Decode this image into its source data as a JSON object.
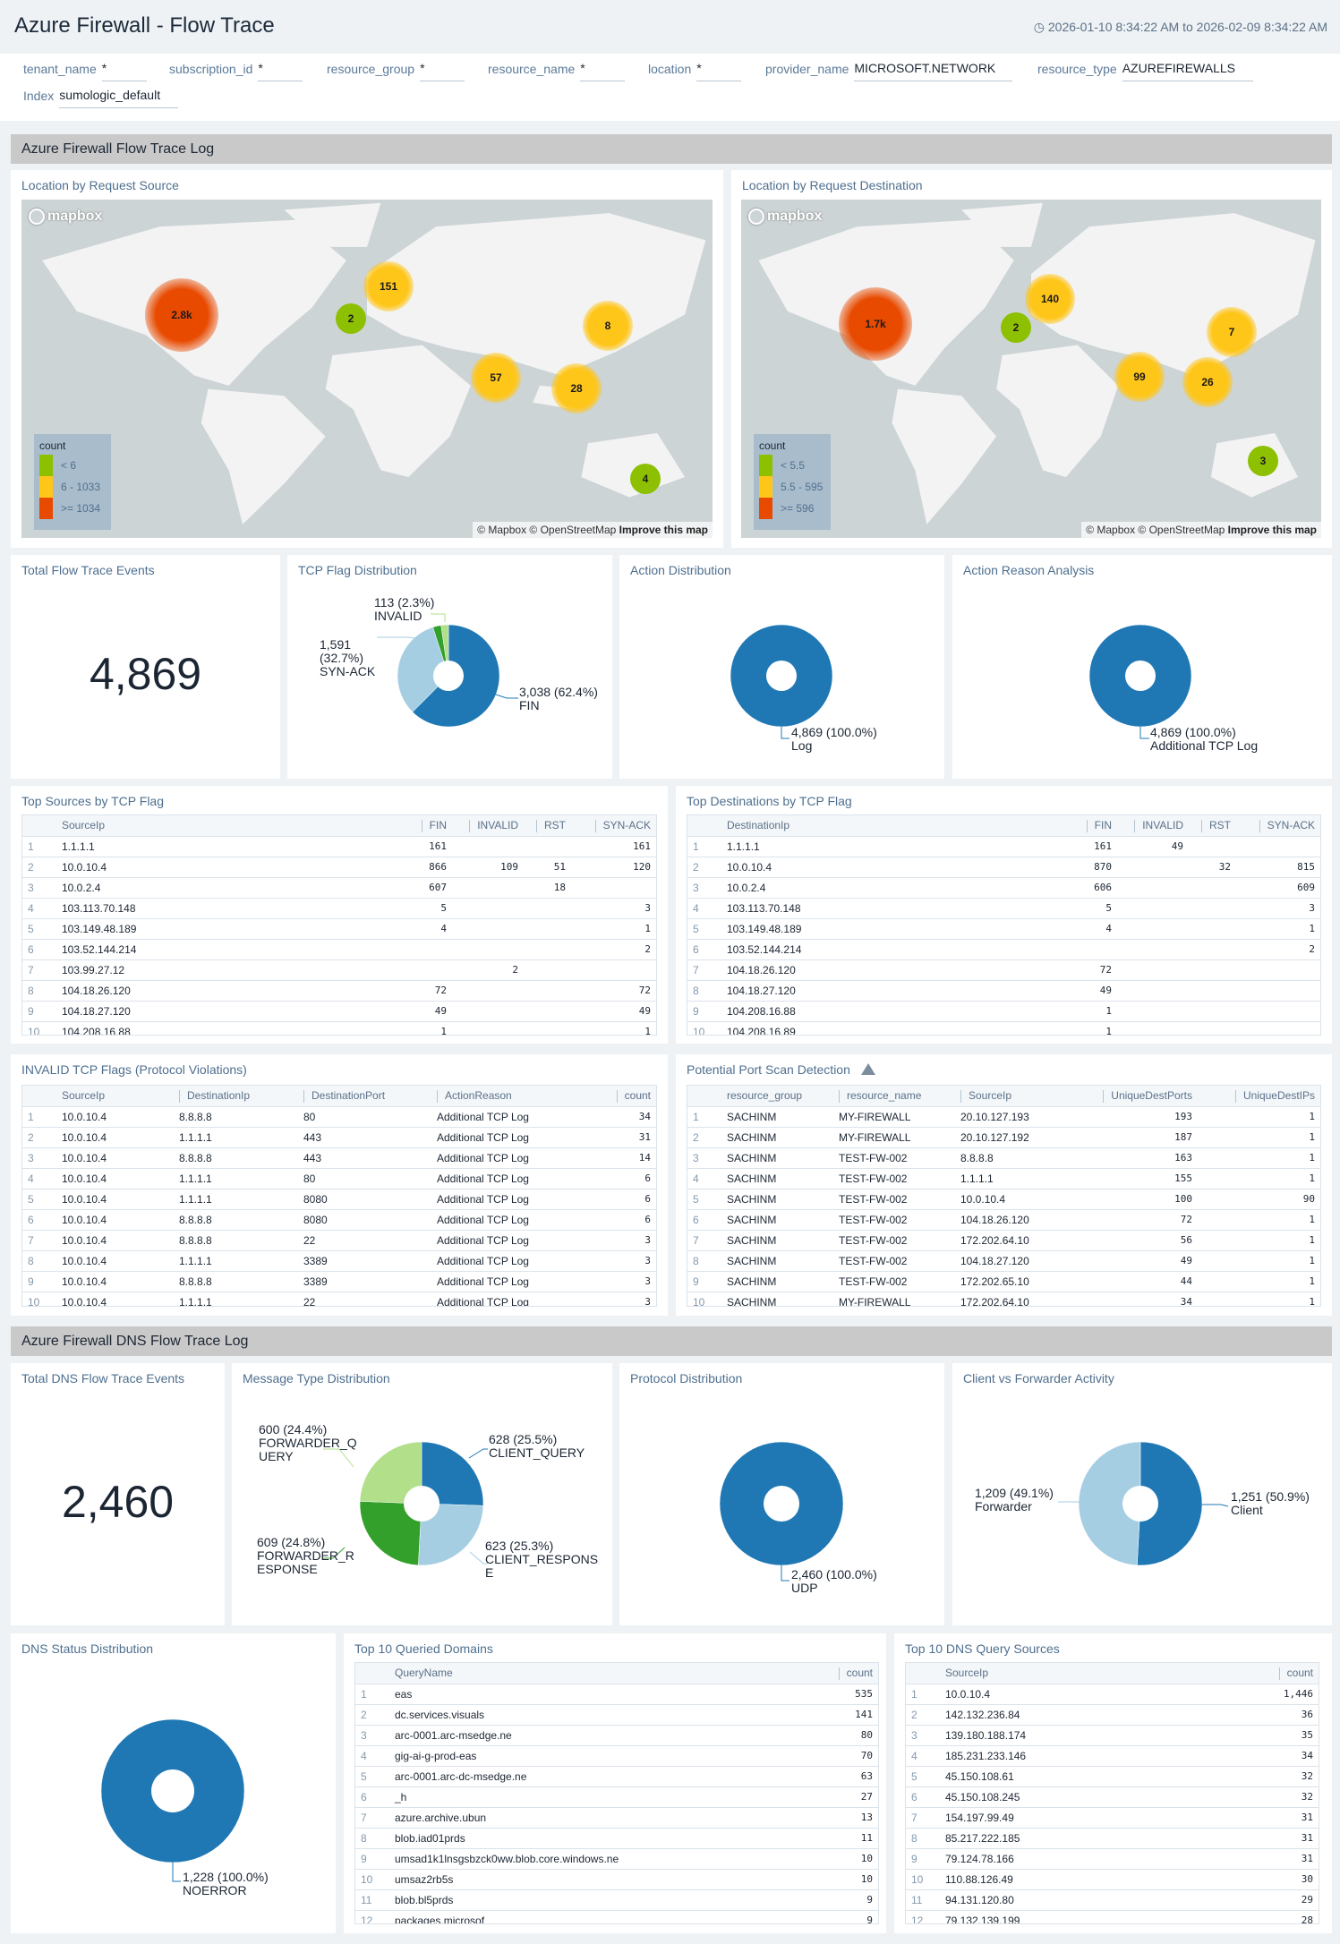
{
  "header": {
    "title": "Azure Firewall - Flow Trace",
    "time_range": "2026-01-10 8:34:22 AM to 2026-02-09 8:34:22 AM"
  },
  "filters": [
    {
      "key": "tenant_name",
      "value": "*"
    },
    {
      "key": "subscription_id",
      "value": "*"
    },
    {
      "key": "resource_group",
      "value": "*"
    },
    {
      "key": "resource_name",
      "value": "*"
    },
    {
      "key": "location",
      "value": "*"
    },
    {
      "key": "provider_name",
      "value": "MICROSOFT.NETWORK"
    },
    {
      "key": "resource_type",
      "value": "AZUREFIREWALLS"
    },
    {
      "key": "Index",
      "value": "sumologic_default"
    }
  ],
  "sections": {
    "flow": "Azure Firewall Flow Trace Log",
    "dns": "Azure Firewall DNS Flow Trace Log"
  },
  "maps": {
    "attribution": "© Mapbox © OpenStreetMap",
    "improve": "Improve this map",
    "logo": "mapbox",
    "source": {
      "title": "Location by Request Source",
      "legend_title": "count",
      "legend": [
        "< 6",
        "6 - 1033",
        ">= 1034"
      ],
      "clusters": [
        "2.8k",
        "151",
        "2",
        "8",
        "57",
        "28",
        "4"
      ]
    },
    "destination": {
      "title": "Location by Request Destination",
      "legend_title": "count",
      "legend": [
        "< 5.5",
        "5.5 - 595",
        ">= 596"
      ],
      "clusters": [
        "1.7k",
        "140",
        "2",
        "7",
        "99",
        "26",
        "3"
      ]
    },
    "colors": {
      "low": "#8dc000",
      "mid": "#ffc61a",
      "high": "#e84a00"
    }
  },
  "total_flow": {
    "title": "Total Flow Trace Events",
    "value": "4,869"
  },
  "chart_data": [
    {
      "type": "pie",
      "title": "TCP Flag Distribution",
      "slices": [
        {
          "label": "FIN",
          "value": 3038,
          "text": "3,038 (62.4%)\nFIN",
          "color": "#1f78b4"
        },
        {
          "label": "SYN-ACK",
          "value": 1591,
          "text": "1,591\n(32.7%)\nSYN-ACK",
          "color": "#a6cee3"
        },
        {
          "label": "",
          "value": 127,
          "text": "",
          "color": "#33a02c"
        },
        {
          "label": "INVALID",
          "value": 113,
          "text": "113 (2.3%)\nINVALID",
          "color": "#b2df8a"
        }
      ]
    },
    {
      "type": "pie",
      "title": "Action Distribution",
      "slices": [
        {
          "label": "Log",
          "value": 4869,
          "text": "4,869 (100.0%)\nLog",
          "color": "#1f78b4"
        }
      ]
    },
    {
      "type": "pie",
      "title": "Action Reason Analysis",
      "slices": [
        {
          "label": "Additional TCP Log",
          "value": 4869,
          "text": "4,869 (100.0%)\nAdditional TCP Log",
          "color": "#1f78b4"
        }
      ]
    },
    {
      "type": "pie",
      "title": "Message Type Distribution",
      "slices": [
        {
          "label": "CLIENT_QUERY",
          "value": 628,
          "text": "628 (25.5%)\nCLIENT_QUERY",
          "color": "#1f78b4"
        },
        {
          "label": "CLIENT_RESPONSE",
          "value": 623,
          "text": "623 (25.3%)\nCLIENT_RESPONS\nE",
          "color": "#a6cee3"
        },
        {
          "label": "FORWARDER_RESPONSE",
          "value": 609,
          "text": "609 (24.8%)\nFORWARDER_R\nESPONSE",
          "color": "#33a02c"
        },
        {
          "label": "FORWARDER_QUERY",
          "value": 600,
          "text": "600 (24.4%)\nFORWARDER_Q\nUERY",
          "color": "#b2df8a"
        }
      ]
    },
    {
      "type": "pie",
      "title": "Protocol Distribution",
      "slices": [
        {
          "label": "UDP",
          "value": 2460,
          "text": "2,460 (100.0%)\nUDP",
          "color": "#1f78b4"
        }
      ]
    },
    {
      "type": "pie",
      "title": "Client vs Forwarder Activity",
      "slices": [
        {
          "label": "Client",
          "value": 1251,
          "text": "1,251 (50.9%)\nClient",
          "color": "#1f78b4"
        },
        {
          "label": "Forwarder",
          "value": 1209,
          "text": "1,209 (49.1%)\nForwarder",
          "color": "#a6cee3"
        }
      ]
    },
    {
      "type": "pie",
      "title": "DNS Status Distribution",
      "slices": [
        {
          "label": "NOERROR",
          "value": 1228,
          "text": "1,228 (100.0%)\nNOERROR",
          "color": "#1f78b4"
        }
      ]
    }
  ],
  "total_dns": {
    "title": "Total DNS Flow Trace Events",
    "value": "2,460"
  },
  "tables": {
    "top_sources": {
      "title": "Top Sources by TCP Flag",
      "columns": [
        "SourceIp",
        "FIN",
        "INVALID",
        "RST",
        "SYN-ACK"
      ],
      "rows": [
        [
          "1.1.1.1",
          "161",
          "",
          "",
          "161"
        ],
        [
          "10.0.10.4",
          "866",
          "109",
          "51",
          "120"
        ],
        [
          "10.0.2.4",
          "607",
          "",
          "18",
          ""
        ],
        [
          "103.113.70.148",
          "5",
          "",
          "",
          "3"
        ],
        [
          "103.149.48.189",
          "4",
          "",
          "",
          "1"
        ],
        [
          "103.52.144.214",
          "",
          "",
          "",
          "2"
        ],
        [
          "103.99.27.12",
          "",
          "2",
          "",
          ""
        ],
        [
          "104.18.26.120",
          "72",
          "",
          "",
          "72"
        ],
        [
          "104.18.27.120",
          "49",
          "",
          "",
          "49"
        ],
        [
          "104.208.16.88",
          "1",
          "",
          "",
          "1"
        ]
      ]
    },
    "top_destinations": {
      "title": "Top Destinations by TCP Flag",
      "columns": [
        "DestinationIp",
        "FIN",
        "INVALID",
        "RST",
        "SYN-ACK"
      ],
      "rows": [
        [
          "1.1.1.1",
          "161",
          "49",
          "",
          ""
        ],
        [
          "10.0.10.4",
          "870",
          "",
          "32",
          "815"
        ],
        [
          "10.0.2.4",
          "606",
          "",
          "",
          "609"
        ],
        [
          "103.113.70.148",
          "5",
          "",
          "",
          "3"
        ],
        [
          "103.149.48.189",
          "4",
          "",
          "",
          "1"
        ],
        [
          "103.52.144.214",
          "",
          "",
          "",
          "2"
        ],
        [
          "104.18.26.120",
          "72",
          "",
          "",
          ""
        ],
        [
          "104.18.27.120",
          "49",
          "",
          "",
          ""
        ],
        [
          "104.208.16.88",
          "1",
          "",
          "",
          ""
        ],
        [
          "104.208.16.89",
          "1",
          "",
          "",
          ""
        ]
      ]
    },
    "invalid_flags": {
      "title": "INVALID TCP Flags (Protocol Violations)",
      "columns": [
        "SourceIp",
        "DestinationIp",
        "DestinationPort",
        "ActionReason",
        "count"
      ],
      "rows": [
        [
          "10.0.10.4",
          "8.8.8.8",
          "80",
          "Additional TCP Log",
          "34"
        ],
        [
          "10.0.10.4",
          "1.1.1.1",
          "443",
          "Additional TCP Log",
          "31"
        ],
        [
          "10.0.10.4",
          "8.8.8.8",
          "443",
          "Additional TCP Log",
          "14"
        ],
        [
          "10.0.10.4",
          "1.1.1.1",
          "80",
          "Additional TCP Log",
          "6"
        ],
        [
          "10.0.10.4",
          "1.1.1.1",
          "8080",
          "Additional TCP Log",
          "6"
        ],
        [
          "10.0.10.4",
          "8.8.8.8",
          "8080",
          "Additional TCP Log",
          "6"
        ],
        [
          "10.0.10.4",
          "8.8.8.8",
          "22",
          "Additional TCP Log",
          "3"
        ],
        [
          "10.0.10.4",
          "1.1.1.1",
          "3389",
          "Additional TCP Log",
          "3"
        ],
        [
          "10.0.10.4",
          "8.8.8.8",
          "3389",
          "Additional TCP Log",
          "3"
        ],
        [
          "10.0.10.4",
          "1.1.1.1",
          "22",
          "Additional TCP Log",
          "3"
        ]
      ]
    },
    "port_scan": {
      "title": "Potential Port Scan Detection",
      "columns": [
        "resource_group",
        "resource_name",
        "SourceIp",
        "UniqueDestPorts",
        "UniqueDestIPs"
      ],
      "rows": [
        [
          "SACHINM",
          "MY-FIREWALL",
          "20.10.127.193",
          "193",
          "1"
        ],
        [
          "SACHINM",
          "MY-FIREWALL",
          "20.10.127.192",
          "187",
          "1"
        ],
        [
          "SACHINM",
          "TEST-FW-002",
          "8.8.8.8",
          "163",
          "1"
        ],
        [
          "SACHINM",
          "TEST-FW-002",
          "1.1.1.1",
          "155",
          "1"
        ],
        [
          "SACHINM",
          "TEST-FW-002",
          "10.0.10.4",
          "100",
          "90"
        ],
        [
          "SACHINM",
          "TEST-FW-002",
          "104.18.26.120",
          "72",
          "1"
        ],
        [
          "SACHINM",
          "TEST-FW-002",
          "172.202.64.10",
          "56",
          "1"
        ],
        [
          "SACHINM",
          "TEST-FW-002",
          "104.18.27.120",
          "49",
          "1"
        ],
        [
          "SACHINM",
          "TEST-FW-002",
          "172.202.65.10",
          "44",
          "1"
        ],
        [
          "SACHINM",
          "MY-FIREWALL",
          "172.202.64.10",
          "34",
          "1"
        ]
      ]
    },
    "queried_domains": {
      "title": "Top 10 Queried Domains",
      "columns": [
        "QueryName",
        "count"
      ],
      "rows": [
        [
          "eas",
          "535"
        ],
        [
          "dc.services.visuals",
          "141"
        ],
        [
          "arc-0001.arc-msedge.ne",
          "80"
        ],
        [
          "gig-ai-g-prod-eas",
          "70"
        ],
        [
          "arc-0001.arc-dc-msedge.ne",
          "63"
        ],
        [
          "_h",
          "27"
        ],
        [
          "azure.archive.ubun",
          "13"
        ],
        [
          "blob.iad01prds",
          "11"
        ],
        [
          "umsad1k1lnsgsbzck0ww.blob.core.windows.ne",
          "10"
        ],
        [
          "umsaz2rb5s",
          "10"
        ],
        [
          "blob.bl5prds",
          "9"
        ],
        [
          "packages.microsof",
          "9"
        ]
      ]
    },
    "dns_sources": {
      "title": "Top 10 DNS Query Sources",
      "columns": [
        "SourceIp",
        "count"
      ],
      "rows": [
        [
          "10.0.10.4",
          "1,446"
        ],
        [
          "142.132.236.84",
          "36"
        ],
        [
          "139.180.188.174",
          "35"
        ],
        [
          "185.231.233.146",
          "34"
        ],
        [
          "45.150.108.61",
          "32"
        ],
        [
          "45.150.108.245",
          "32"
        ],
        [
          "154.197.99.49",
          "31"
        ],
        [
          "85.217.222.185",
          "31"
        ],
        [
          "79.124.78.166",
          "31"
        ],
        [
          "110.88.126.49",
          "30"
        ],
        [
          "94.131.120.80",
          "29"
        ],
        [
          "79.132.139.199",
          "28"
        ]
      ]
    }
  }
}
